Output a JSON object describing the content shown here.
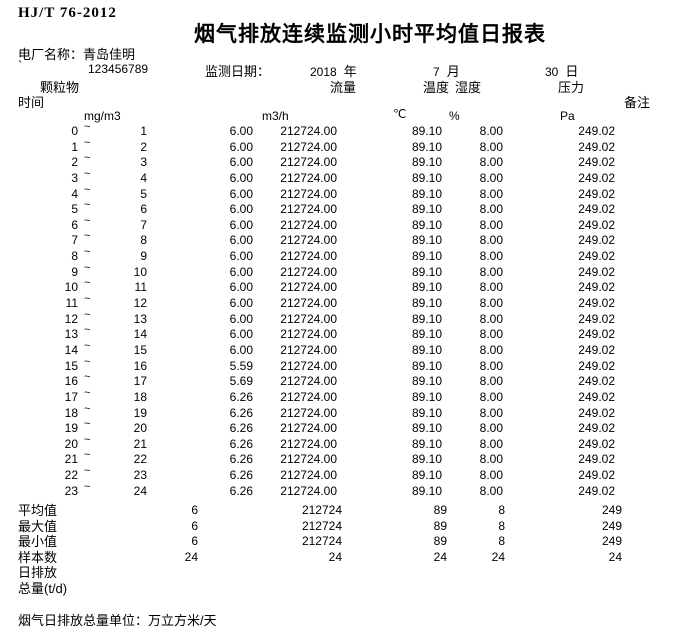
{
  "doc_code": "HJ/T 76-2012",
  "title": "烟气排放连续监测小时平均值日报表",
  "plant": {
    "label": "电厂名称：",
    "name": "青岛佳明",
    "mark": "`",
    "id": "123456789"
  },
  "date": {
    "label": "监测日期：",
    "year": "2018",
    "year_unit": "年",
    "month": "7",
    "month_unit": "月",
    "day": "30",
    "day_unit": "日"
  },
  "table": {
    "time_header": "时间",
    "remark_header": "备注",
    "group_headers": {
      "particulate": "颗粒物",
      "flow": "流量",
      "temperature": "温度",
      "humidity": "湿度",
      "pressure": "压力"
    },
    "units": {
      "particulate": "mg/m3",
      "flow": "m3/h",
      "temperature": "℃",
      "humidity": "%",
      "pressure": "Pa"
    },
    "tilde": "~",
    "rows": [
      [
        "0",
        "1",
        "6.00",
        "212724.00",
        "89.10",
        "8.00",
        "249.02"
      ],
      [
        "1",
        "2",
        "6.00",
        "212724.00",
        "89.10",
        "8.00",
        "249.02"
      ],
      [
        "2",
        "3",
        "6.00",
        "212724.00",
        "89.10",
        "8.00",
        "249.02"
      ],
      [
        "3",
        "4",
        "6.00",
        "212724.00",
        "89.10",
        "8.00",
        "249.02"
      ],
      [
        "4",
        "5",
        "6.00",
        "212724.00",
        "89.10",
        "8.00",
        "249.02"
      ],
      [
        "5",
        "6",
        "6.00",
        "212724.00",
        "89.10",
        "8.00",
        "249.02"
      ],
      [
        "6",
        "7",
        "6.00",
        "212724.00",
        "89.10",
        "8.00",
        "249.02"
      ],
      [
        "7",
        "8",
        "6.00",
        "212724.00",
        "89.10",
        "8.00",
        "249.02"
      ],
      [
        "8",
        "9",
        "6.00",
        "212724.00",
        "89.10",
        "8.00",
        "249.02"
      ],
      [
        "9",
        "10",
        "6.00",
        "212724.00",
        "89.10",
        "8.00",
        "249.02"
      ],
      [
        "10",
        "11",
        "6.00",
        "212724.00",
        "89.10",
        "8.00",
        "249.02"
      ],
      [
        "11",
        "12",
        "6.00",
        "212724.00",
        "89.10",
        "8.00",
        "249.02"
      ],
      [
        "12",
        "13",
        "6.00",
        "212724.00",
        "89.10",
        "8.00",
        "249.02"
      ],
      [
        "13",
        "14",
        "6.00",
        "212724.00",
        "89.10",
        "8.00",
        "249.02"
      ],
      [
        "14",
        "15",
        "6.00",
        "212724.00",
        "89.10",
        "8.00",
        "249.02"
      ],
      [
        "15",
        "16",
        "5.59",
        "212724.00",
        "89.10",
        "8.00",
        "249.02"
      ],
      [
        "16",
        "17",
        "5.69",
        "212724.00",
        "89.10",
        "8.00",
        "249.02"
      ],
      [
        "17",
        "18",
        "6.26",
        "212724.00",
        "89.10",
        "8.00",
        "249.02"
      ],
      [
        "18",
        "19",
        "6.26",
        "212724.00",
        "89.10",
        "8.00",
        "249.02"
      ],
      [
        "19",
        "20",
        "6.26",
        "212724.00",
        "89.10",
        "8.00",
        "249.02"
      ],
      [
        "20",
        "21",
        "6.26",
        "212724.00",
        "89.10",
        "8.00",
        "249.02"
      ],
      [
        "21",
        "22",
        "6.26",
        "212724.00",
        "89.10",
        "8.00",
        "249.02"
      ],
      [
        "22",
        "23",
        "6.26",
        "212724.00",
        "89.10",
        "8.00",
        "249.02"
      ],
      [
        "23",
        "24",
        "6.26",
        "212724.00",
        "89.10",
        "8.00",
        "249.02"
      ]
    ],
    "summary": [
      {
        "label": "平均值",
        "values": [
          "6",
          "212724",
          "89",
          "8",
          "249"
        ]
      },
      {
        "label": "最大值",
        "values": [
          "6",
          "212724",
          "89",
          "8",
          "249"
        ]
      },
      {
        "label": "最小值",
        "values": [
          "6",
          "212724",
          "89",
          "8",
          "249"
        ]
      },
      {
        "label": "样本数",
        "values": [
          "24",
          "24",
          "24",
          "24",
          "24"
        ]
      },
      {
        "label": "日排放",
        "values": [
          "",
          "",
          "",
          "",
          ""
        ]
      },
      {
        "label": "总量(t/d)",
        "values": [
          "",
          "",
          "",
          "",
          ""
        ]
      }
    ]
  },
  "footer": "烟气日排放总量单位：万立方米/天"
}
